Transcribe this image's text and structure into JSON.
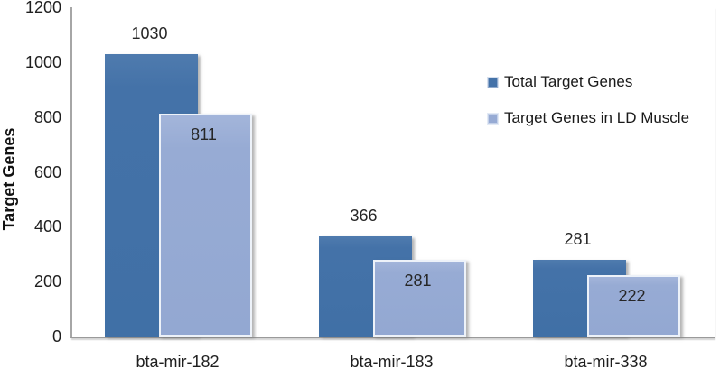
{
  "chart_data": {
    "type": "bar",
    "title": "",
    "xlabel": "",
    "ylabel": "Target Genes",
    "categories": [
      "bta-mir-182",
      "bta-mir-183",
      "bta-mir-338"
    ],
    "series": [
      {
        "name": "Total Target Genes",
        "color": "#4472a8",
        "values": [
          1030,
          366,
          281
        ],
        "value_label_position": "above"
      },
      {
        "name": "Target Genes in LD Muscle",
        "color": "#97abd4",
        "values": [
          811,
          281,
          222
        ],
        "value_label_position": "inside-top"
      }
    ],
    "ylim": [
      0,
      1200
    ],
    "yticks": [
      "0",
      "200",
      "400",
      "600",
      "800",
      "1000",
      "1200"
    ],
    "grid": false,
    "legend_position": "center-right",
    "axis_color": "#a0a0a0",
    "background_color": "#ffffff",
    "value_label_color": "#262626"
  }
}
